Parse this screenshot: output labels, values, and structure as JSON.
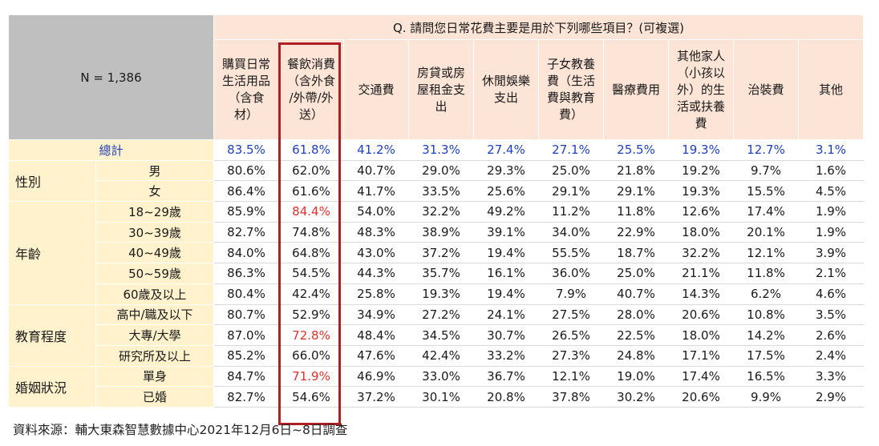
{
  "table": {
    "n_label": "N = 1,386",
    "question": "Q. 請問您日常花費主要是用於下列哪些項目？(可複選)",
    "columns": [
      "購買日常生活用品（含食材）",
      "餐飲消費（含外食/外帶/外送）",
      "交通費",
      "房貸或房屋租金支出",
      "休閒娛樂支出",
      "子女教養費（生活費與教育費）",
      "醫療費用",
      "其他家人（小孩以外）的生活或扶養費",
      "治裝費",
      "其他"
    ],
    "column_lines": [
      [
        "購買日常",
        "生活用品",
        "（含食",
        "材）"
      ],
      [
        "餐飲消費",
        "（含外食",
        "/外帶/外",
        "送）"
      ],
      [
        "交通費"
      ],
      [
        "房貸或房",
        "屋租金支",
        "出"
      ],
      [
        "休閒娛樂",
        "支出"
      ],
      [
        "子女教養",
        "費（生活",
        "費與教育",
        "費）"
      ],
      [
        "醫療費用"
      ],
      [
        "其他家人",
        "（小孩以",
        "外）的生",
        "活或扶養",
        "費"
      ],
      [
        "治裝費"
      ],
      [
        "其他"
      ]
    ],
    "total": {
      "label": "總計",
      "values": [
        "83.5%",
        "61.8%",
        "41.2%",
        "31.3%",
        "27.4%",
        "27.1%",
        "25.5%",
        "19.3%",
        "12.7%",
        "3.1%"
      ]
    },
    "groups": [
      {
        "label": "性別",
        "rows": [
          {
            "label": "男",
            "values": [
              "80.6%",
              "62.0%",
              "40.7%",
              "29.0%",
              "29.3%",
              "25.0%",
              "21.8%",
              "19.2%",
              "9.7%",
              "1.6%"
            ]
          },
          {
            "label": "女",
            "values": [
              "86.4%",
              "61.6%",
              "41.7%",
              "33.5%",
              "25.6%",
              "29.1%",
              "29.1%",
              "19.3%",
              "15.5%",
              "4.5%"
            ]
          }
        ]
      },
      {
        "label": "年齡",
        "rows": [
          {
            "label": "18~29歲",
            "values": [
              "85.9%",
              "84.4%",
              "54.0%",
              "32.2%",
              "49.2%",
              "11.2%",
              "11.8%",
              "12.6%",
              "17.4%",
              "1.9%"
            ],
            "highlight": 1
          },
          {
            "label": "30~39歲",
            "values": [
              "82.7%",
              "74.8%",
              "48.3%",
              "38.9%",
              "39.1%",
              "34.0%",
              "22.9%",
              "18.0%",
              "20.1%",
              "1.9%"
            ]
          },
          {
            "label": "40~49歲",
            "values": [
              "84.0%",
              "64.8%",
              "43.0%",
              "37.2%",
              "19.4%",
              "55.5%",
              "18.7%",
              "32.2%",
              "12.1%",
              "3.9%"
            ]
          },
          {
            "label": "50~59歲",
            "values": [
              "86.3%",
              "54.5%",
              "44.3%",
              "35.7%",
              "16.1%",
              "36.0%",
              "25.0%",
              "21.1%",
              "11.8%",
              "2.1%"
            ]
          },
          {
            "label": "60歲及以上",
            "values": [
              "80.4%",
              "42.4%",
              "25.8%",
              "19.3%",
              "19.4%",
              "7.9%",
              "40.7%",
              "14.3%",
              "6.2%",
              "4.6%"
            ]
          }
        ]
      },
      {
        "label": "教育程度",
        "rows": [
          {
            "label": "高中/職及以下",
            "values": [
              "80.7%",
              "52.9%",
              "34.9%",
              "27.2%",
              "24.1%",
              "27.5%",
              "28.0%",
              "20.6%",
              "10.8%",
              "3.5%"
            ]
          },
          {
            "label": "大專/大學",
            "values": [
              "87.0%",
              "72.8%",
              "48.4%",
              "34.5%",
              "30.7%",
              "26.5%",
              "22.5%",
              "18.0%",
              "14.2%",
              "2.6%"
            ],
            "highlight": 1
          },
          {
            "label": "研究所及以上",
            "values": [
              "85.2%",
              "66.0%",
              "47.6%",
              "42.4%",
              "33.2%",
              "27.3%",
              "24.8%",
              "17.1%",
              "17.5%",
              "2.4%"
            ]
          }
        ]
      },
      {
        "label": "婚姻狀況",
        "rows": [
          {
            "label": "單身",
            "values": [
              "84.7%",
              "71.9%",
              "46.9%",
              "33.0%",
              "36.7%",
              "12.1%",
              "19.0%",
              "17.4%",
              "16.5%",
              "3.3%"
            ],
            "highlight": 1
          },
          {
            "label": "已婚",
            "values": [
              "82.7%",
              "54.6%",
              "37.2%",
              "30.1%",
              "20.8%",
              "37.8%",
              "30.2%",
              "20.6%",
              "9.9%",
              "2.9%"
            ]
          }
        ]
      }
    ]
  },
  "source": "資料來源：輔大東森智慧數據中心2021年12月6日~8日調查",
  "colors": {
    "header_gray": "#bfbfbf",
    "header_peach": "#fce4d6",
    "label_tan": "#fff2cc",
    "total_blue": "#1f3fbf",
    "highlight_red": "#e0302c",
    "box_border": "#b01f24"
  }
}
